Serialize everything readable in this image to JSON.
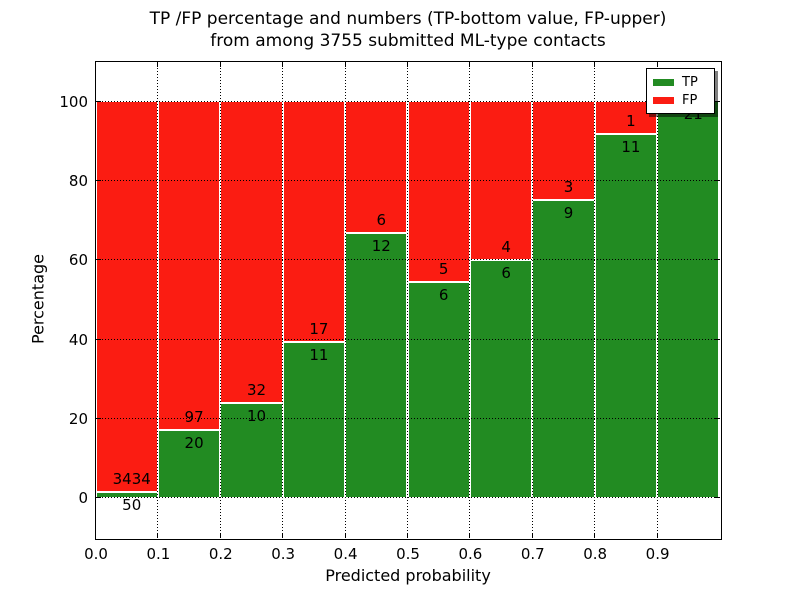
{
  "chart_data": {
    "type": "bar",
    "stacked": true,
    "normalized_to_percent": true,
    "title_lines": [
      "TP /FP percentage and numbers (TP-bottom value, FP-upper)",
      "from among 3755 submitted ML-type contacts"
    ],
    "xlabel": "Predicted probability",
    "ylabel": "Percentage",
    "total_contacts": 3755,
    "xlim": [
      0.0,
      1.0
    ],
    "ylim": [
      -10,
      110
    ],
    "x_tick_labels": [
      "0.0",
      "0.1",
      "0.2",
      "0.3",
      "0.4",
      "0.5",
      "0.6",
      "0.7",
      "0.8",
      "0.9"
    ],
    "y_tick_values": [
      0,
      20,
      40,
      60,
      80,
      100
    ],
    "grid_style": "dotted",
    "grid_on": true,
    "bin_starts": [
      0.0,
      0.1,
      0.2,
      0.3,
      0.4,
      0.5,
      0.6,
      0.7,
      0.8,
      0.9
    ],
    "bin_width": 0.1,
    "series": [
      {
        "name": "TP",
        "color": "#228b22",
        "counts": [
          50,
          20,
          10,
          11,
          12,
          6,
          6,
          9,
          11,
          21
        ],
        "percent": [
          1.4,
          17.1,
          23.8,
          39.3,
          66.7,
          54.5,
          60.0,
          75.0,
          91.7,
          100.0
        ]
      },
      {
        "name": "FP",
        "color": "#fb1c12",
        "counts": [
          3434,
          97,
          32,
          17,
          6,
          5,
          4,
          3,
          1,
          0
        ],
        "percent": [
          98.6,
          82.9,
          76.2,
          60.7,
          33.3,
          45.5,
          40.0,
          25.0,
          8.3,
          0.0
        ]
      }
    ],
    "bar_count_labels": {
      "tp": [
        "50",
        "20",
        "10",
        "11",
        "12",
        "6",
        "6",
        "9",
        "11",
        "21"
      ],
      "fp": [
        "3434",
        "97",
        "32",
        "17",
        "6",
        "5",
        "4",
        "3",
        "1",
        ""
      ]
    },
    "legend": {
      "position": "upper right",
      "entries": [
        {
          "label": "TP",
          "color": "#228b22"
        },
        {
          "label": "FP",
          "color": "#fb1c12"
        }
      ]
    }
  }
}
